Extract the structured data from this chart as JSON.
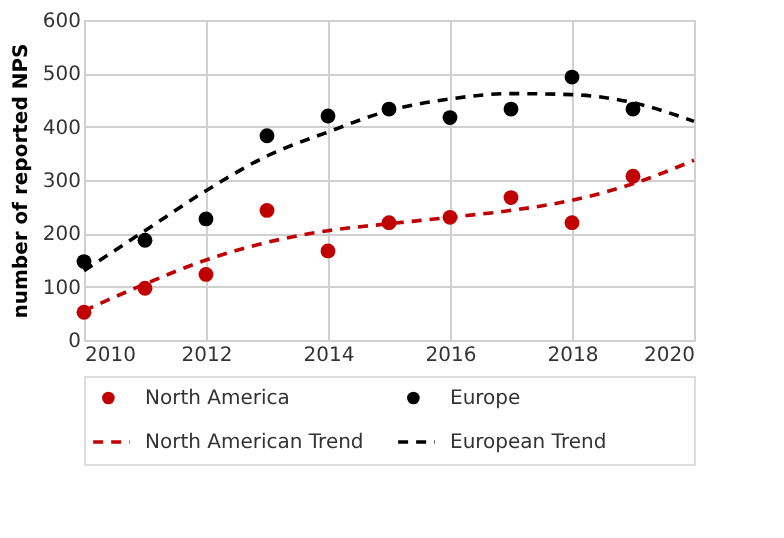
{
  "chart_data": {
    "type": "scatter",
    "ylabel": "number of reported NPS",
    "x": [
      2010,
      2011,
      2012,
      2013,
      2014,
      2015,
      2016,
      2017,
      2018,
      2019
    ],
    "series": [
      {
        "name": "North America",
        "color": "#c00000",
        "marker": "circle",
        "values": [
          52,
          97,
          123,
          243,
          167,
          220,
          230,
          267,
          220,
          307
        ]
      },
      {
        "name": "Europe",
        "color": "#000000",
        "marker": "circle",
        "values": [
          147,
          187,
          227,
          383,
          420,
          433,
          417,
          433,
          493,
          433
        ]
      },
      {
        "name": "North American Trend",
        "type": "line",
        "color": "#c00000",
        "line_style": "dashed",
        "x": [
          2010,
          2011,
          2012,
          2013,
          2014,
          2015,
          2016,
          2017,
          2018,
          2019,
          2020
        ],
        "values": [
          55,
          105,
          150,
          183,
          205,
          218,
          230,
          243,
          262,
          293,
          337
        ]
      },
      {
        "name": "European Trend",
        "type": "line",
        "color": "#000000",
        "line_style": "dashed",
        "x": [
          2010,
          2011,
          2012,
          2013,
          2014,
          2015,
          2016,
          2017,
          2018,
          2019,
          2020
        ],
        "values": [
          130,
          205,
          280,
          345,
          390,
          430,
          452,
          462,
          460,
          445,
          410
        ]
      }
    ],
    "xlim": [
      2010,
      2020
    ],
    "xticks": [
      2010,
      2012,
      2014,
      2016,
      2018,
      2020
    ],
    "ylim": [
      0,
      600
    ],
    "yticks": [
      0,
      100,
      200,
      300,
      400,
      500,
      600
    ],
    "grid": true,
    "legend": "bottom"
  }
}
